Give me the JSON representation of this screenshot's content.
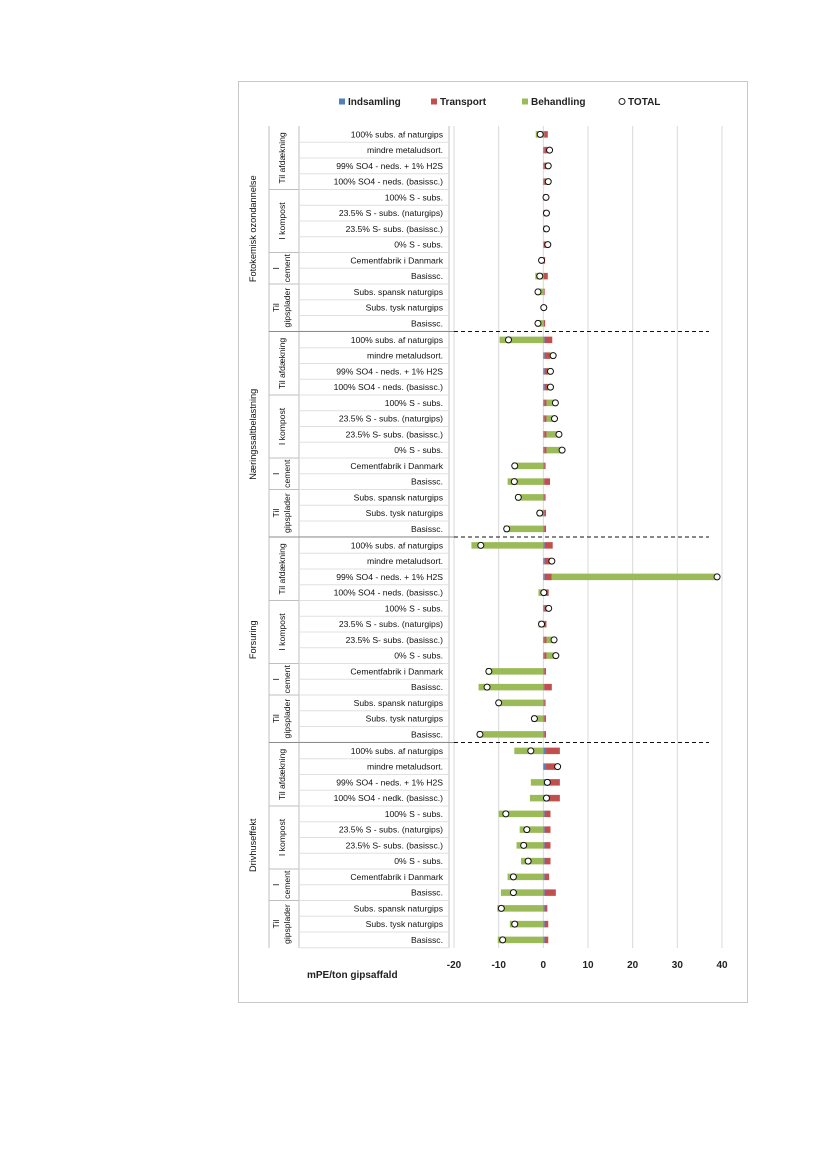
{
  "chart_data": {
    "type": "bar",
    "orientation": "horizontal",
    "stacked": true,
    "xlabel": "mPE/ton gipsaffald",
    "xlim": [
      -20,
      40
    ],
    "xticks": [
      "-20",
      "-10",
      "0",
      "10",
      "20",
      "30",
      "40"
    ],
    "grid": true,
    "legend_position": "top",
    "legend": [
      {
        "name": "Indsamling",
        "color": "#4f81bd",
        "marker": "square"
      },
      {
        "name": "Transport",
        "color": "#c0504d",
        "marker": "square"
      },
      {
        "name": "Behandling",
        "color": "#9bbb59",
        "marker": "square"
      },
      {
        "name": "TOTAL",
        "color": "#ffffff",
        "marker": "circle"
      }
    ],
    "groups": [
      {
        "name": "Til afdækning",
        "labels": [
          "100% subs. af naturgips",
          "mindre metaludsort.",
          "99% SO4 - neds. + 1% H2S",
          "100% SO4 - neds. (basissc.)"
        ]
      },
      {
        "name": "I kompost",
        "labels": [
          "100% S - subs.",
          "23.5% S - subs. (naturgips)",
          "23.5% S- subs. (basissc.)",
          "0% S - subs."
        ]
      },
      {
        "name": "I cement",
        "labels": [
          "Cementfabrik i Danmark",
          "Basissc."
        ]
      },
      {
        "name": "Til gipsplader",
        "labels": [
          "Subs. spansk naturgips",
          "Subs. tysk naturgips",
          "Basissc."
        ]
      }
    ],
    "blocks": [
      {
        "name": "Fotokemisk ozondannelse",
        "labels": [
          "100% subs. af naturgips",
          "mindre metaludsort.",
          "99% SO4 - neds. + 1% H2S",
          "100% SO4 - neds. (basissc.)",
          "100% S - subs.",
          "23.5% S - subs. (naturgips)",
          "23.5% S- subs. (basissc.)",
          "0% S - subs.",
          "Cementfabrik i Danmark",
          "Basissc.",
          "Subs. spansk naturgips",
          "Subs. tysk naturgips",
          "Basissc."
        ],
        "indsamling": [
          0.2,
          0.2,
          0.2,
          0.2,
          0.1,
          0.1,
          0.1,
          0.1,
          0.1,
          0.1,
          0.1,
          0.1,
          0.1
        ],
        "transport": [
          0.8,
          0.7,
          0.4,
          0.4,
          0.4,
          0.4,
          0.4,
          0.4,
          0.3,
          0.9,
          0.2,
          0.3,
          0.3
        ],
        "behandling": [
          -1.7,
          0.5,
          0.5,
          0.5,
          0.1,
          0.2,
          0.2,
          0.5,
          -0.8,
          -1.8,
          -1.5,
          -0.3,
          -1.6
        ],
        "total": [
          -0.7,
          1.4,
          1.1,
          1.1,
          0.6,
          0.7,
          0.7,
          1.0,
          -0.4,
          -0.8,
          -1.2,
          0.1,
          -1.2
        ]
      },
      {
        "name": "Næringssaltbelastning",
        "labels": [
          "100% subs. af naturgips",
          "mindre metaludsort.",
          "99% SO4 - neds. + 1% H2S",
          "100% SO4 - neds. (basissc.)",
          "100% S - subs.",
          "23.5% S - subs. (naturgips)",
          "23.5% S- subs. (basissc.)",
          "0% S - subs.",
          "Cementfabrik i Danmark",
          "Basissc.",
          "Subs. spansk naturgips",
          "Subs. tysk naturgips",
          "Basissc."
        ],
        "indsamling": [
          0.3,
          0.3,
          0.3,
          0.3,
          0.2,
          0.2,
          0.2,
          0.2,
          0.2,
          0.2,
          0.2,
          0.2,
          0.2
        ],
        "transport": [
          1.7,
          1.2,
          0.8,
          0.8,
          0.5,
          0.5,
          0.5,
          0.5,
          0.3,
          1.3,
          0.3,
          0.4,
          0.4
        ],
        "behandling": [
          -9.8,
          0.7,
          0.5,
          0.5,
          2.0,
          1.8,
          2.8,
          3.5,
          -6.9,
          -8.0,
          -6.1,
          -1.4,
          -8.8
        ],
        "total": [
          -7.8,
          2.2,
          1.6,
          1.6,
          2.7,
          2.5,
          3.5,
          4.2,
          -6.4,
          -6.5,
          -5.6,
          -0.8,
          -8.2
        ]
      },
      {
        "name": "Forsuring",
        "labels": [
          "100% subs. af naturgips",
          "mindre metaludsort.",
          "99% SO4 - neds. + 1% H2S",
          "100% SO4 - neds. (basissc.)",
          "100% S - subs.",
          "23.5% S - subs. (naturgips)",
          "23.5% S- subs. (basissc.)",
          "0% S - subs.",
          "Cementfabrik i Danmark",
          "Basissc.",
          "Subs. spansk naturgips",
          "Subs. tysk naturgips",
          "Basissc."
        ],
        "indsamling": [
          0.3,
          0.3,
          0.3,
          0.3,
          0.2,
          0.2,
          0.2,
          0.2,
          0.2,
          0.2,
          0.2,
          0.2,
          0.2
        ],
        "transport": [
          1.8,
          1.2,
          1.6,
          0.9,
          0.5,
          0.5,
          0.5,
          0.5,
          0.4,
          1.7,
          0.3,
          0.4,
          0.4
        ],
        "behandling": [
          -16.1,
          0.4,
          37.0,
          -1.1,
          0.5,
          -1.1,
          1.7,
          2.1,
          -12.8,
          -14.5,
          -10.5,
          -2.6,
          -14.8
        ],
        "total": [
          -14.0,
          1.9,
          38.9,
          0.1,
          1.2,
          -0.4,
          2.4,
          2.8,
          -12.2,
          -12.6,
          -10.0,
          -2.0,
          -14.2
        ]
      },
      {
        "name": "Drivhuseffekt",
        "labels": [
          "100% subs. af naturgips",
          "mindre metaludsort.",
          "99% SO4 - neds. + 1% H2S",
          "100% SO4 - nedk. (basissc.)",
          "100% S - subs.",
          "23.5% S - subs. (naturgips)",
          "23.5% S- subs. (basissc.)",
          "0% S - subs.",
          "Cementfabrik i Danmark",
          "Basissc.",
          "Subs. spansk naturgips",
          "Subs. tysk naturgips",
          "Basissc."
        ],
        "indsamling": [
          0.4,
          0.4,
          0.4,
          0.4,
          0.3,
          0.3,
          0.3,
          0.3,
          0.3,
          0.3,
          0.3,
          0.3,
          0.3
        ],
        "transport": [
          3.3,
          2.3,
          3.3,
          3.3,
          1.3,
          1.3,
          1.3,
          1.3,
          1.0,
          2.5,
          0.6,
          0.8,
          0.8
        ],
        "behandling": [
          -6.5,
          0.5,
          -2.8,
          -3.0,
          -10.0,
          -5.3,
          -6.0,
          -5.0,
          -8.0,
          -9.5,
          -10.3,
          -7.5,
          -10.2
        ],
        "total": [
          -2.8,
          3.2,
          0.9,
          0.7,
          -8.4,
          -3.7,
          -4.4,
          -3.4,
          -6.7,
          -6.7,
          -9.4,
          -6.4,
          -9.1
        ]
      }
    ]
  }
}
